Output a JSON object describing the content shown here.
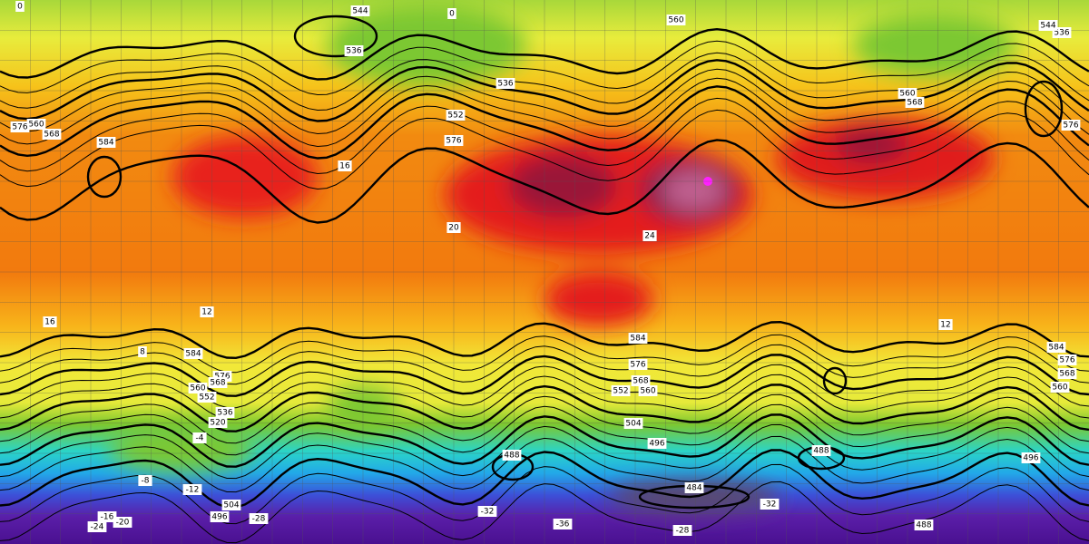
{
  "height_labels": [
    544,
    536,
    560,
    536,
    544,
    536,
    552,
    576,
    560,
    568,
    576,
    584,
    560,
    568,
    576,
    584,
    576,
    568,
    560,
    552,
    536,
    520,
    584,
    576,
    568,
    560,
    552,
    504,
    496,
    488,
    488,
    484,
    488,
    584,
    576,
    568,
    560,
    496,
    504,
    496
  ],
  "temperature_labels": [
    16,
    20,
    24,
    16,
    12,
    12,
    8,
    -4,
    -8,
    -12,
    -16,
    -20,
    -24,
    -28,
    -32,
    -36,
    -32,
    -28,
    0,
    0
  ]
}
